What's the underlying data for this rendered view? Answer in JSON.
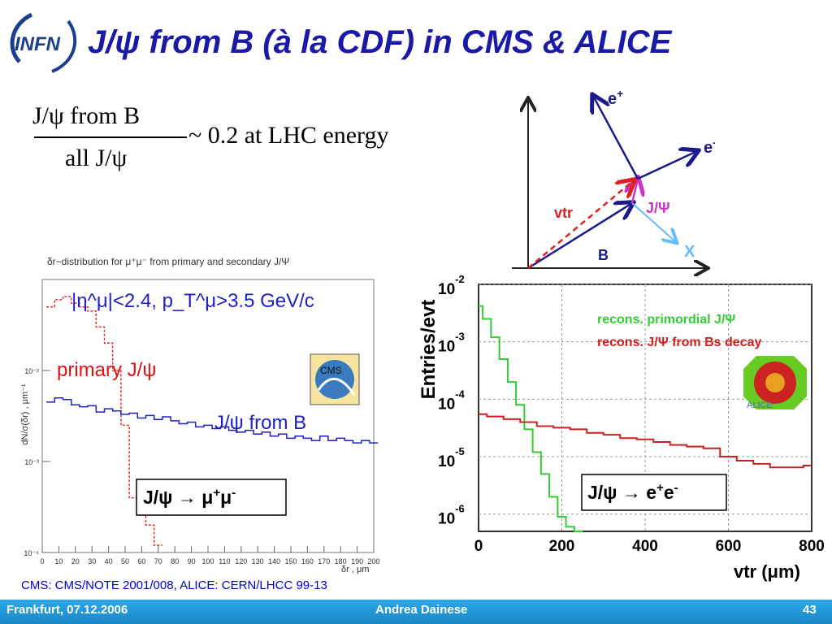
{
  "slide": {
    "title": "J/ψ from B (à la CDF) in CMS & ALICE",
    "logo_text": "INFN",
    "formula": {
      "numerator": "J/ψ from B",
      "denominator": "all J/ψ",
      "rest": "~ 0.2 at LHC energy"
    },
    "reference": "CMS: CMS/NOTE 2001/008,  ALICE: CERN/LHCC 99-13",
    "footer": {
      "left": "Frankfurt, 07.12.2006",
      "center": "Andrea Dainese",
      "page": "43"
    }
  },
  "diagram": {
    "labels": {
      "e_plus": "e",
      "e_plus_sup": "+",
      "e_minus": "e",
      "e_minus_sup": "-",
      "jpsi": "J/Ψ",
      "vtr": "vtr",
      "b": "B",
      "x": "X"
    },
    "colors": {
      "vectors": "#1a1a8c",
      "vtr": "#e02020",
      "jpsi": "#cc33cc",
      "x": "#66bbff"
    }
  },
  "chart_data": [
    {
      "type": "line",
      "title": "δr−distribution for μ⁺μ⁻ from primary and secondary J/Ψ",
      "cut_text": "|η^μ|<2.4, p_T^μ>3.5 GeV/c",
      "xlabel": "δr , μm",
      "ylabel": "dN/σ(δr) , μm⁻¹",
      "log_y": true,
      "xlim": [
        0,
        200
      ],
      "ylim": [
        0.0001,
        0.1
      ],
      "x_ticks": [
        0,
        10,
        20,
        30,
        40,
        50,
        60,
        70,
        80,
        90,
        100,
        110,
        120,
        130,
        140,
        150,
        160,
        170,
        180,
        190,
        200
      ],
      "y_tick_labels": [
        "10⁻²",
        "10⁻³",
        "10⁻⁴"
      ],
      "y_tick_values": [
        0.01,
        0.001,
        0.0001
      ],
      "series": [
        {
          "name": "primary J/ψ",
          "color": "#e03030",
          "style": "dotted",
          "x": [
            5,
            10,
            15,
            20,
            25,
            30,
            35,
            40,
            45,
            50,
            55,
            60,
            65,
            70
          ],
          "y": [
            0.05,
            0.06,
            0.065,
            0.055,
            0.05,
            0.045,
            0.03,
            0.02,
            0.01,
            0.0025,
            0.0004,
            0.0003,
            0.0002,
            0.00012
          ]
        },
        {
          "name": "J/ψ from B",
          "color": "#2020c0",
          "style": "solid",
          "x": [
            5,
            10,
            15,
            20,
            25,
            30,
            35,
            40,
            45,
            50,
            55,
            60,
            65,
            70,
            75,
            80,
            85,
            90,
            95,
            100,
            105,
            110,
            115,
            120,
            125,
            130,
            135,
            140,
            145,
            150,
            155,
            160,
            165,
            170,
            175,
            180,
            185,
            190,
            195,
            200
          ],
          "y": [
            0.0045,
            0.005,
            0.0048,
            0.0042,
            0.004,
            0.0041,
            0.0035,
            0.0038,
            0.0036,
            0.0033,
            0.0034,
            0.003,
            0.0032,
            0.0029,
            0.0031,
            0.0028,
            0.0026,
            0.0027,
            0.0024,
            0.0025,
            0.0023,
            0.0024,
            0.0022,
            0.0021,
            0.0022,
            0.002,
            0.0021,
            0.0019,
            0.002,
            0.0018,
            0.0019,
            0.0018,
            0.0017,
            0.0019,
            0.0017,
            0.0018,
            0.0017,
            0.0016,
            0.0017,
            0.0016
          ]
        }
      ],
      "annotations": {
        "primary": "primary J/ψ",
        "from_b": "J/ψ from B",
        "box_main": "J/ψ → μ",
        "box_sup1": "+",
        "box_mid": "μ",
        "box_sup2": "-"
      },
      "badge": "CMS"
    },
    {
      "type": "line",
      "xlabel": "vtr (μm)",
      "ylabel": "Entries/evt",
      "log_y": true,
      "xlim": [
        0,
        800
      ],
      "ylim": [
        5e-07,
        0.01
      ],
      "x_ticks": [
        0,
        200,
        400,
        600,
        800
      ],
      "y_tick_exps": [
        "-2",
        "-3",
        "-4",
        "-5",
        "-6"
      ],
      "y_tick_values": [
        0.01,
        0.001,
        0.0001,
        1e-05,
        1e-06
      ],
      "y_tick_base": "10",
      "grid": true,
      "legend_position": "top-right",
      "series": [
        {
          "name": "recons. primordial J/Ψ",
          "color": "#33cc33",
          "x": [
            0,
            20,
            40,
            60,
            80,
            100,
            120,
            140,
            160,
            180,
            200,
            220,
            240
          ],
          "y": [
            0.0042,
            0.0025,
            0.0012,
            0.0005,
            0.0002,
            8e-05,
            3e-05,
            1.2e-05,
            5e-06,
            2e-06,
            9e-07,
            6e-07,
            5e-07
          ]
        },
        {
          "name": "recons. J/Ψ from Bs decay",
          "color": "#cc2020",
          "x": [
            0,
            40,
            80,
            120,
            160,
            200,
            240,
            280,
            320,
            360,
            400,
            440,
            480,
            520,
            560,
            600,
            640,
            680,
            720,
            760,
            800
          ],
          "y": [
            5.5e-05,
            5e-05,
            4.5e-05,
            4e-05,
            3.4e-05,
            3.2e-05,
            3e-05,
            2.6e-05,
            2.4e-05,
            2.1e-05,
            2e-05,
            1.8e-05,
            1.6e-05,
            1.5e-05,
            1.4e-05,
            1e-05,
            8.5e-06,
            7.5e-06,
            6.5e-06,
            6.5e-06,
            7e-06
          ]
        }
      ],
      "annotations": {
        "box_main": "J/ψ → e",
        "box_sup1": "+",
        "box_mid": "e",
        "box_sup2": "-"
      },
      "badge": "ALICE"
    }
  ]
}
